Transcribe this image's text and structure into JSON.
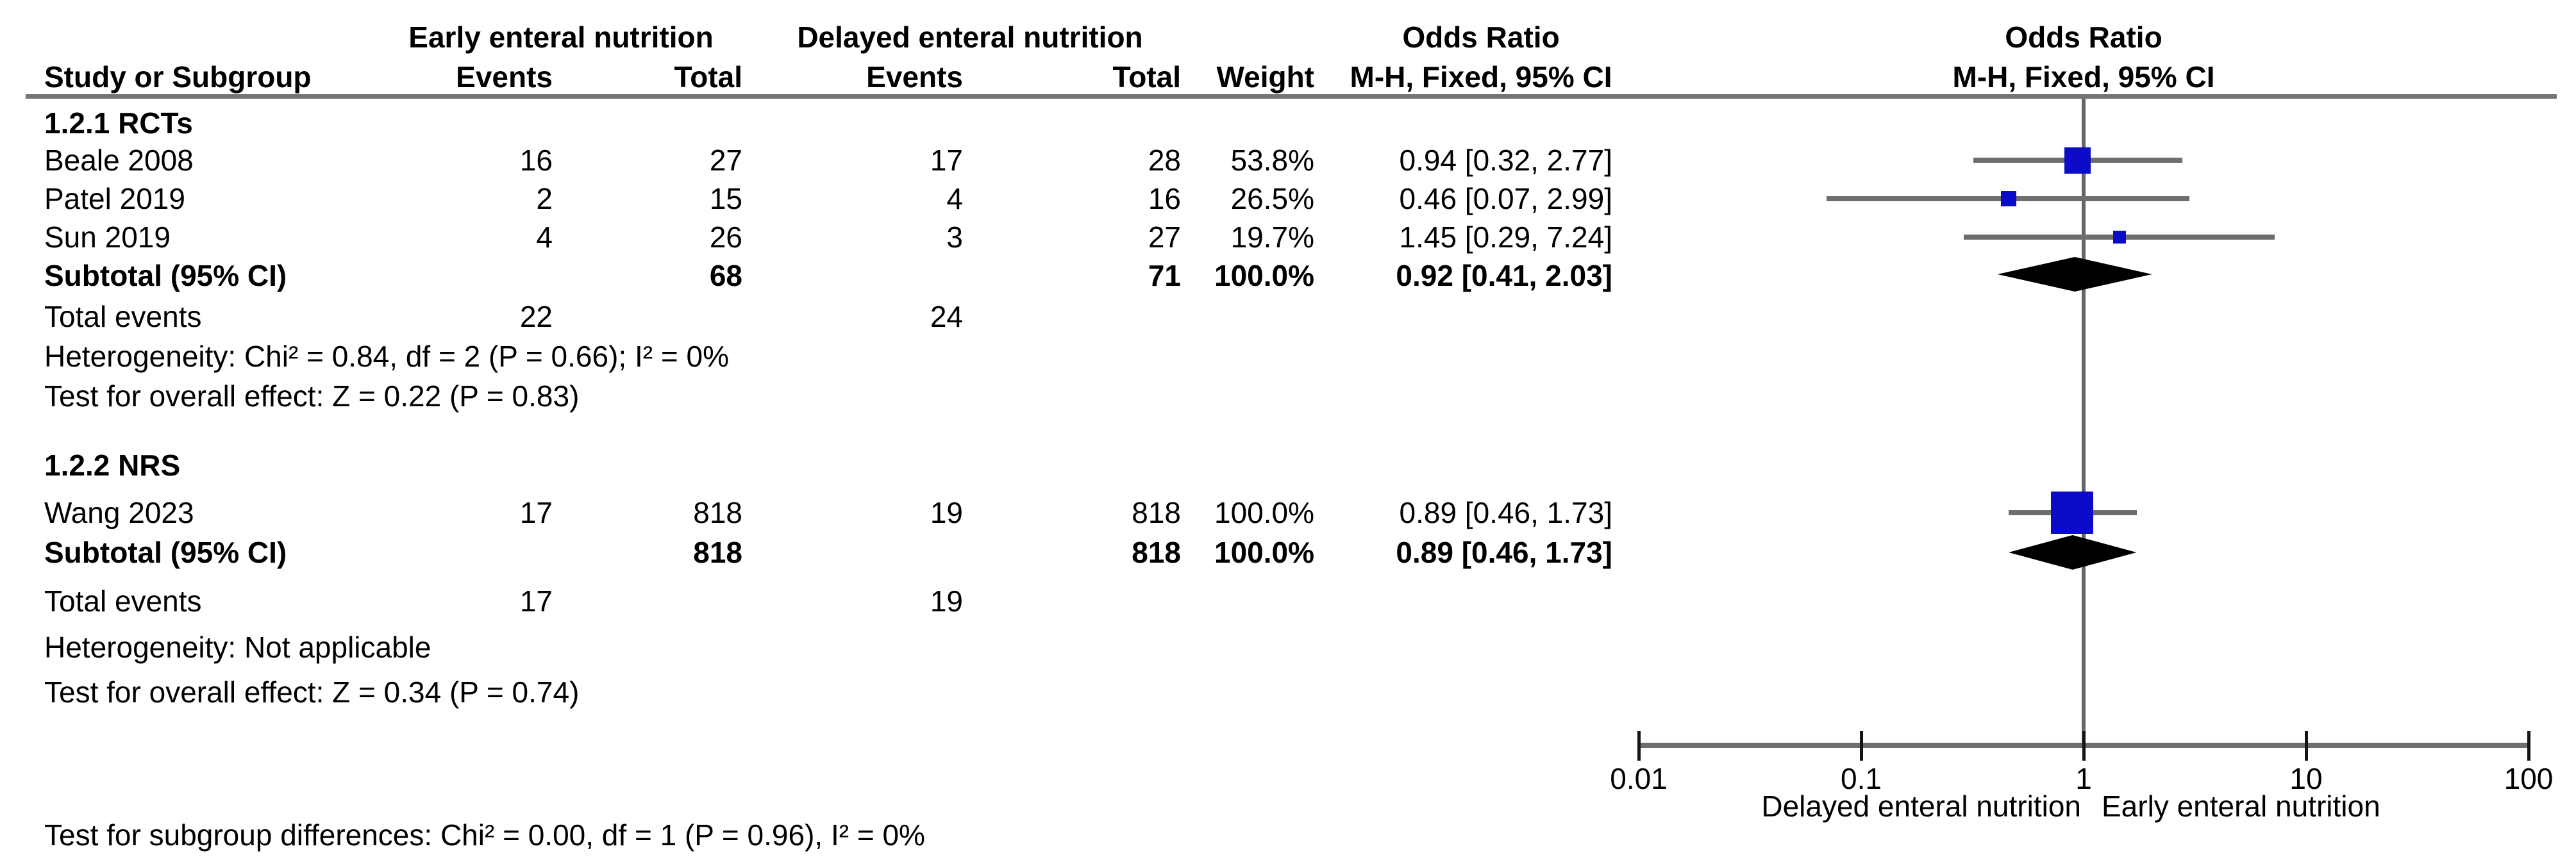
{
  "header": {
    "group_early": "Early enteral nutrition",
    "group_delayed": "Delayed enteral nutrition",
    "or_text_title": "Odds Ratio",
    "or_plot_title": "Odds Ratio",
    "study": "Study or Subgroup",
    "events_early": "Events",
    "total_early": "Total",
    "events_delayed": "Events",
    "total_delayed": "Total",
    "weight": "Weight",
    "mh_text": "M-H, Fixed, 95% CI",
    "mh_plot": "M-H, Fixed, 95% CI"
  },
  "sections": [
    {
      "label": "1.2.1 RCTs",
      "studies": [
        {
          "study": "Beale 2008",
          "ee": "16",
          "et": "27",
          "de": "17",
          "dt": "28",
          "w": "53.8%",
          "or": "0.94 [0.32, 2.77]"
        },
        {
          "study": "Patel 2019",
          "ee": "2",
          "et": "15",
          "de": "4",
          "dt": "16",
          "w": "26.5%",
          "or": "0.46 [0.07, 2.99]"
        },
        {
          "study": "Sun 2019",
          "ee": "4",
          "et": "26",
          "de": "3",
          "dt": "27",
          "w": "19.7%",
          "or": "1.45 [0.29, 7.24]"
        }
      ],
      "subtotal": {
        "label": "Subtotal (95% CI)",
        "et": "68",
        "dt": "71",
        "w": "100.0%",
        "or": "0.92 [0.41, 2.03]"
      },
      "total_events": {
        "label": "Total events",
        "ee": "22",
        "de": "24"
      },
      "heterogeneity": "Heterogeneity: Chi² = 0.84, df = 2 (P = 0.66); I² = 0%",
      "overall": "Test for overall effect: Z = 0.22 (P = 0.83)"
    },
    {
      "label": "1.2.2 NRS",
      "studies": [
        {
          "study": "Wang 2023",
          "ee": "17",
          "et": "818",
          "de": "19",
          "dt": "818",
          "w": "100.0%",
          "or": "0.89 [0.46, 1.73]"
        }
      ],
      "subtotal": {
        "label": "Subtotal (95% CI)",
        "et": "818",
        "dt": "818",
        "w": "100.0%",
        "or": "0.89 [0.46, 1.73]"
      },
      "total_events": {
        "label": "Total events",
        "ee": "17",
        "de": "19"
      },
      "heterogeneity": "Heterogeneity: Not applicable",
      "overall": "Test for overall effect: Z = 0.34 (P = 0.74)"
    }
  ],
  "footer": "Test for subgroup differences: Chi² = 0.00, df = 1 (P = 0.96), I² = 0%",
  "chart_data": {
    "type": "scatter",
    "variant": "forest-plot",
    "title": "Odds Ratio",
    "subtitle": "M-H, Fixed, 95% CI",
    "x_scale": "log10",
    "x_range": [
      0.01,
      100
    ],
    "x_ticks": [
      0.01,
      0.1,
      1,
      10,
      100
    ],
    "null_line": 1,
    "axis_left_label": "Delayed enteral nutrition",
    "axis_right_label": "Early enteral nutrition",
    "marker_color": "#0b0bc8",
    "line_color": "#6e6e6e",
    "null_line_color": "#666666",
    "summary_color": "#000000",
    "series": [
      {
        "name": "1.2.1 RCTs",
        "points": [
          {
            "study": "Beale 2008",
            "or": 0.94,
            "ci": [
              0.32,
              2.77
            ],
            "weight_pct": 53.8
          },
          {
            "study": "Patel 2019",
            "or": 0.46,
            "ci": [
              0.07,
              2.99
            ],
            "weight_pct": 26.5
          },
          {
            "study": "Sun 2019",
            "or": 1.45,
            "ci": [
              0.29,
              7.24
            ],
            "weight_pct": 19.7
          }
        ],
        "subtotal": {
          "or": 0.92,
          "ci": [
            0.41,
            2.03
          ],
          "weight_pct": 100.0
        }
      },
      {
        "name": "1.2.2 NRS",
        "points": [
          {
            "study": "Wang 2023",
            "or": 0.89,
            "ci": [
              0.46,
              1.73
            ],
            "weight_pct": 100.0
          }
        ],
        "subtotal": {
          "or": 0.89,
          "ci": [
            0.46,
            1.73
          ],
          "weight_pct": 100.0
        }
      }
    ]
  }
}
